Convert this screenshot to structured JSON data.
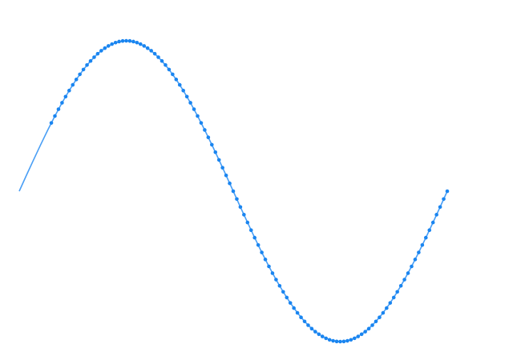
{
  "chart_data": {
    "type": "line",
    "xlim": [
      0,
      360
    ],
    "ylim": [
      -1,
      1
    ],
    "series": [
      {
        "style": "line",
        "color": "#4a9ff5",
        "x": [
          0,
          6,
          12,
          18,
          24,
          30,
          36,
          42,
          48,
          54,
          60,
          66,
          72,
          78,
          84,
          90,
          96,
          102,
          108,
          114,
          120,
          126,
          132,
          138,
          144,
          150,
          156,
          162,
          168,
          174,
          180,
          186,
          192,
          198,
          204,
          210,
          216,
          222,
          228,
          234,
          240,
          246,
          252,
          258,
          264,
          270,
          276,
          282,
          288,
          294,
          300,
          306,
          312,
          318,
          324,
          330,
          336,
          342,
          348,
          354,
          360
        ],
        "values": [
          0,
          0.105,
          0.208,
          0.309,
          0.407,
          0.5,
          0.588,
          0.669,
          0.743,
          0.809,
          0.866,
          0.914,
          0.951,
          0.978,
          0.995,
          1,
          0.995,
          0.978,
          0.951,
          0.914,
          0.866,
          0.809,
          0.743,
          0.669,
          0.588,
          0.5,
          0.407,
          0.309,
          0.208,
          0.105,
          0,
          -0.105,
          -0.208,
          -0.309,
          -0.407,
          -0.5,
          -0.588,
          -0.669,
          -0.743,
          -0.809,
          -0.866,
          -0.914,
          -0.951,
          -0.978,
          -0.995,
          -1,
          -0.995,
          -0.978,
          -0.951,
          -0.914,
          -0.866,
          -0.809,
          -0.743,
          -0.669,
          -0.588,
          -0.5,
          -0.407,
          -0.309,
          -0.208,
          -0.105,
          0
        ]
      },
      {
        "style": "markers",
        "color": "#1a85f0",
        "x": [
          27,
          30,
          33,
          36,
          39,
          42,
          45,
          48,
          51,
          54,
          57,
          60,
          63,
          66,
          69,
          72,
          75,
          78,
          81,
          84,
          87,
          90,
          93,
          96,
          99,
          102,
          105,
          108,
          111,
          114,
          117,
          120,
          123,
          126,
          129,
          132,
          135,
          138,
          141,
          144,
          147,
          150,
          153,
          156,
          159,
          162,
          165,
          168,
          171,
          174,
          177,
          180,
          183,
          186,
          189,
          192,
          195,
          198,
          201,
          204,
          207,
          210,
          213,
          216,
          219,
          222,
          225,
          228,
          231,
          234,
          237,
          240,
          243,
          246,
          249,
          252,
          255,
          258,
          261,
          264,
          267,
          270,
          273,
          276,
          279,
          282,
          285,
          288,
          291,
          294,
          297,
          300,
          303,
          306,
          309,
          312,
          315,
          318,
          321,
          324,
          327,
          330,
          333,
          336,
          339,
          342,
          345,
          348,
          351,
          354,
          357,
          360
        ],
        "values": [
          0.454,
          0.5,
          0.545,
          0.588,
          0.629,
          0.669,
          0.707,
          0.743,
          0.777,
          0.809,
          0.839,
          0.866,
          0.891,
          0.914,
          0.934,
          0.951,
          0.966,
          0.978,
          0.988,
          0.995,
          0.999,
          1,
          0.999,
          0.995,
          0.988,
          0.978,
          0.966,
          0.951,
          0.934,
          0.914,
          0.891,
          0.866,
          0.839,
          0.809,
          0.777,
          0.743,
          0.707,
          0.669,
          0.629,
          0.588,
          0.545,
          0.5,
          0.454,
          0.407,
          0.358,
          0.309,
          0.259,
          0.208,
          0.156,
          0.105,
          0.052,
          0,
          -0.052,
          -0.105,
          -0.156,
          -0.208,
          -0.259,
          -0.309,
          -0.358,
          -0.407,
          -0.454,
          -0.5,
          -0.545,
          -0.588,
          -0.629,
          -0.669,
          -0.707,
          -0.743,
          -0.777,
          -0.809,
          -0.839,
          -0.866,
          -0.891,
          -0.914,
          -0.934,
          -0.951,
          -0.966,
          -0.978,
          -0.988,
          -0.995,
          -0.999,
          -1,
          -0.999,
          -0.995,
          -0.988,
          -0.978,
          -0.966,
          -0.951,
          -0.934,
          -0.914,
          -0.891,
          -0.866,
          -0.839,
          -0.809,
          -0.777,
          -0.743,
          -0.707,
          -0.669,
          -0.629,
          -0.588,
          -0.545,
          -0.5,
          -0.454,
          -0.407,
          -0.358,
          -0.309,
          -0.259,
          -0.208,
          -0.156,
          -0.105,
          -0.052,
          0
        ]
      }
    ]
  }
}
